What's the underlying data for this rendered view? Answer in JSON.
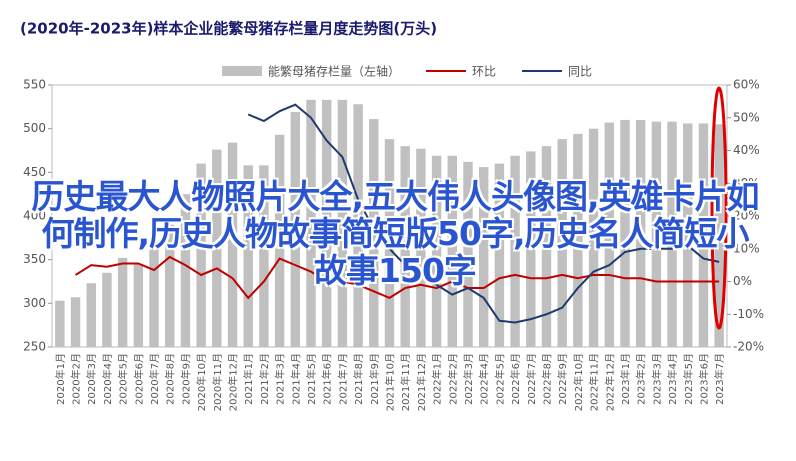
{
  "chart_data": {
    "type": "bar-line",
    "title": "(2020年-2023年)样本企业能繁母猪存栏量月度走势图(万头)",
    "overlay_text": "历史最大人物照片大全,五大伟人头像图,英雄卡片如何制作,历史人物故事简短版50字,历史名人简短小故事150字",
    "categories": [
      "2020年1月",
      "2020年2月",
      "2020年3月",
      "2020年4月",
      "2020年5月",
      "2020年6月",
      "2020年7月",
      "2020年8月",
      "2020年9月",
      "2020年10月",
      "2020年11月",
      "2020年12月",
      "2021年1月",
      "2021年2月",
      "2021年3月",
      "2021年4月",
      "2021年5月",
      "2021年6月",
      "2021年7月",
      "2021年8月",
      "2021年9月",
      "2021年10月",
      "2021年11月",
      "2021年12月",
      "2022年1月",
      "2022年2月",
      "2022年3月",
      "2022年4月",
      "2022年5月",
      "2022年6月",
      "2022年7月",
      "2022年8月",
      "2022年9月",
      "2022年10月",
      "2022年11月",
      "2022年12月",
      "2023年1月",
      "2023年2月",
      "2023年3月",
      "2023年4月",
      "2023年5月",
      "2023年6月",
      "2023年7月"
    ],
    "series": [
      {
        "name": "能繁母猪存栏量（左轴）",
        "color": "#c0c0c0",
        "kind": "bar",
        "axis": "y",
        "values": [
          303,
          307,
          323,
          335,
          352,
          345,
          362,
          390,
          425,
          460,
          476,
          484,
          458,
          458,
          493,
          519,
          533,
          533,
          533,
          528,
          511,
          488,
          480,
          477,
          469,
          469,
          462,
          456,
          460,
          469,
          474,
          480,
          488,
          494,
          500,
          507,
          510,
          510,
          508,
          508,
          506,
          506,
          505
        ]
      },
      {
        "name": "环比",
        "color": "#c00000",
        "kind": "line",
        "axis": "y2",
        "values": [
          null,
          2,
          5,
          4.5,
          5.5,
          5.5,
          3.5,
          7.5,
          5,
          2,
          4,
          1,
          -5,
          0,
          7,
          5,
          3,
          0,
          0,
          -1,
          -3,
          -5,
          -2,
          -1,
          -2,
          0,
          -2,
          -2,
          1,
          2,
          1,
          1,
          2,
          1,
          2,
          2,
          1,
          1,
          0,
          0,
          0,
          0,
          0
        ]
      },
      {
        "name": "同比",
        "color": "#1f3a6e",
        "kind": "line",
        "axis": "y2",
        "values": [
          null,
          null,
          null,
          null,
          null,
          null,
          null,
          null,
          null,
          null,
          null,
          null,
          51,
          49,
          52,
          54,
          50,
          43,
          38,
          25,
          16,
          10,
          5,
          2,
          -1,
          -4,
          -2,
          -5,
          -12,
          -12.5,
          -11.5,
          -10,
          -8,
          -2,
          3,
          5,
          9,
          10,
          10,
          10,
          11,
          7,
          6
        ]
      }
    ],
    "ylim": [
      250,
      550
    ],
    "yticks": [
      250,
      300,
      350,
      400,
      450,
      500,
      550
    ],
    "y2lim": [
      -20,
      60
    ],
    "y2ticks": [
      {
        "value": -20,
        "label": "-20%"
      },
      {
        "value": -10,
        "label": "-10%"
      },
      {
        "value": 0,
        "label": "0%"
      },
      {
        "value": 10,
        "label": "10%"
      },
      {
        "value": 20,
        "label": "20%"
      },
      {
        "value": 30,
        "label": "30%"
      },
      {
        "value": 40,
        "label": "40%"
      },
      {
        "value": 50,
        "label": "50%"
      },
      {
        "value": 60,
        "label": "60%"
      }
    ]
  }
}
